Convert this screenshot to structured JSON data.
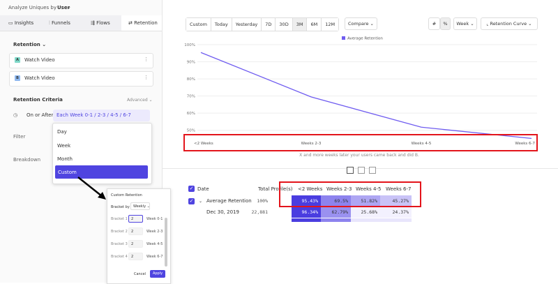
{
  "header": {
    "analyze": "Analyze Uniques by",
    "by": "User"
  },
  "tabs": [
    "Insights",
    "Funnels",
    "Flows",
    "Retention"
  ],
  "retention": {
    "label": "Retention",
    "events": [
      {
        "badge": "A",
        "name": "Watch Video"
      },
      {
        "badge": "B",
        "name": "Watch Video"
      }
    ]
  },
  "criteria": {
    "title": "Retention Criteria",
    "advanced": "Advanced",
    "condition": "On or After",
    "brackets": "Each Week 0-1 / 2-3 / 4-5 / 6-7"
  },
  "filter": "Filter",
  "breakdown": "Breakdown",
  "dropdown": [
    "Day",
    "Week",
    "Month",
    "Custom"
  ],
  "popup": {
    "title": "Custom Retention",
    "bracket_by": "Bracket by",
    "unit": "Weekly",
    "rows": [
      {
        "label": "Bracket 1",
        "value": "2",
        "range": "Week 0-1"
      },
      {
        "label": "Bracket 2",
        "value": "2",
        "range": "Week 2-3"
      },
      {
        "label": "Bracket 3",
        "value": "2",
        "range": "Week 4-5"
      },
      {
        "label": "Bracket 4",
        "value": "2",
        "range": "Week 6-7"
      }
    ],
    "cancel": "Cancel",
    "apply": "Apply"
  },
  "toolbar": {
    "ranges": [
      "Custom",
      "Today",
      "Yesterday",
      "7D",
      "30D",
      "3M",
      "6M",
      "12M"
    ],
    "compare": "Compare",
    "unit": "Week",
    "view": "Retention Curve"
  },
  "chart_data": {
    "type": "line",
    "categories": [
      "<2 Weeks",
      "Weeks 2-3",
      "Weeks 4-5",
      "Weeks 6-7"
    ],
    "series": [
      {
        "name": "Average Retention",
        "color": "#6f5cf0",
        "values": [
          95.43,
          69.5,
          51.82,
          45.27
        ]
      }
    ],
    "ylim": [
      45,
      100
    ],
    "yticks": [
      {
        "value": 50,
        "label": "50%"
      },
      {
        "value": 60,
        "label": "60%"
      },
      {
        "value": 70,
        "label": "70%"
      },
      {
        "value": 80,
        "label": "80%"
      },
      {
        "value": 90,
        "label": "90%"
      },
      {
        "value": 100,
        "label": "100%"
      }
    ],
    "grid": true,
    "caption": "X and more weeks later your users came back and did B."
  },
  "table": {
    "columns": [
      "Date",
      "Total Profile(s)",
      "<2 Weeks",
      "Weeks 2-3",
      "Weeks 4-5",
      "Weeks 6-7"
    ],
    "rows": [
      [
        "Average Retention",
        "100%",
        "95.43%",
        "69.5%",
        "51.82%",
        "45.27%"
      ],
      [
        "Dec 30, 2019",
        "22,881",
        "96.34%",
        "62.79%",
        "25.68%",
        "24.37%"
      ]
    ]
  }
}
